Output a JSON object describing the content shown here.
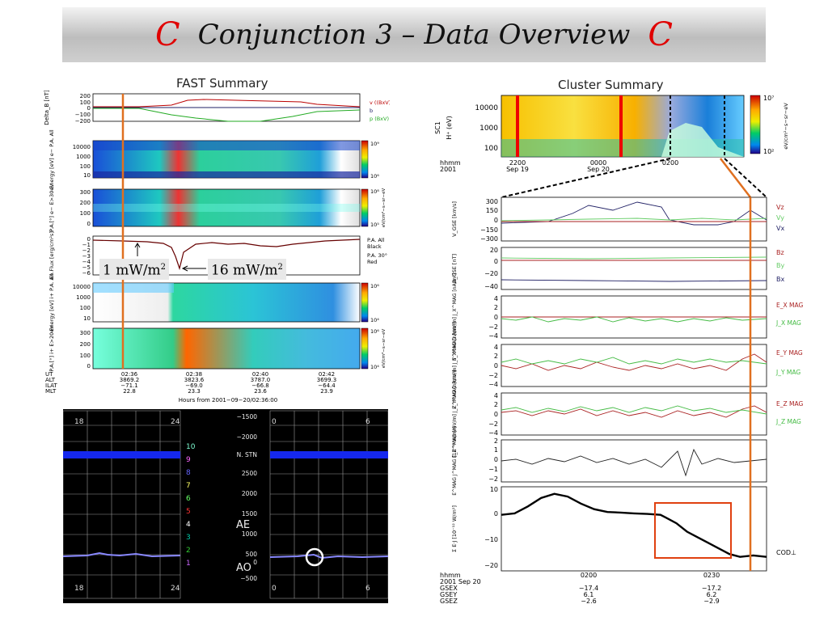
{
  "title": {
    "logo_left": "C",
    "text": "Conjunction 3 – Data Overview",
    "logo_right": "C"
  },
  "fast": {
    "title": "FAST Summary",
    "panels": [
      {
        "ylabel": "Delta_B [nT]",
        "ticks": [
          "200",
          "100",
          "0",
          "−100",
          "−200"
        ],
        "legend": [
          "v ((BxV)xB)",
          "b",
          "p (BxV)"
        ]
      },
      {
        "ylabel": "Energy [eV]  e− P.A. All",
        "ticks": [
          "10000",
          "1000",
          "100",
          "10"
        ],
        "cbar": [
          "10⁹",
          "10⁶"
        ]
      },
      {
        "ylabel": "P.A.[°]  e− E>30eV",
        "ticks": [
          "300",
          "200",
          "100",
          "0"
        ],
        "cbar": [
          "10⁸",
          "10⁵"
        ],
        "cbar_unit": "eV/cm²−s−sr−eV"
      },
      {
        "ylabel": "En.Flux [erg/cm²s]",
        "ticks": [
          "0",
          "−1",
          "−2",
          "−3",
          "−4",
          "−5",
          "−6"
        ],
        "legend": [
          "P.A. All",
          "Black",
          "P.A. 30°",
          "Red"
        ]
      },
      {
        "ylabel": "Energy [eV]  i+ P.A. All",
        "ticks": [
          "10000",
          "1000",
          "100",
          "10"
        ],
        "cbar": [
          "10⁶",
          "10⁴"
        ]
      },
      {
        "ylabel": "P.A.[°]  i+ E>20eV",
        "ticks": [
          "300",
          "200",
          "100",
          "0"
        ],
        "cbar": [
          "10⁶",
          "10⁴"
        ],
        "cbar_unit": "eV/cm²−s−sr−eV"
      }
    ],
    "callouts": {
      "left": "1 mW/m",
      "right": "16 mW/m",
      "power": "2"
    },
    "footer": {
      "row_labels": [
        "UT",
        "ALT",
        "ILAT",
        "MLT"
      ],
      "columns": [
        [
          "02:36",
          "3869.2",
          "−71.1",
          "22.8"
        ],
        [
          "02:38",
          "3823.6",
          "−69.0",
          "23.3"
        ],
        [
          "02:40",
          "3787.0",
          "−66.8",
          "23.6"
        ],
        [
          "02:42",
          "3699.3",
          "−64.4",
          "23.9"
        ]
      ],
      "axis_title": "Hours from 2001−09−20/02:36:00"
    }
  },
  "ae": {
    "ticks_right": [
      "−1500",
      "−2000",
      "N. STN",
      "2500",
      "2000",
      "1500",
      "1000",
      "500",
      "0",
      "−500"
    ],
    "station_numbers": [
      "10",
      "9",
      "8",
      "7",
      "6",
      "5",
      "4",
      "3",
      "2",
      "1"
    ],
    "station_colors": [
      "#7fffd4",
      "#ff66ff",
      "#6666ff",
      "#ffff66",
      "#66ff66",
      "#ff3333",
      "#ffffff",
      "#00ccaa",
      "#33cc33",
      "#cc66ff"
    ],
    "label_ae": "AE",
    "label_ao": "AO",
    "corner_labels": {
      "tl_left": "18",
      "tl_right": "24",
      "tr_left": "0",
      "tr_right": "6",
      "bl_left": "18",
      "bl_right": "24",
      "br_left": "0",
      "br_right": "6"
    }
  },
  "cluster": {
    "title": "Cluster Summary",
    "spectrogram": {
      "sc_label": "SC1",
      "ylabel": "H⁺ (eV)",
      "ticks": [
        "10000",
        "1000",
        "100"
      ],
      "cbar": [
        "10⁷",
        "10²"
      ],
      "cbar_unit": "eV/cm²−s−sr−eV"
    },
    "top_axis": {
      "hhmm": "hhmm",
      "year": "2001",
      "t1": "2200",
      "d1": "Sep 19",
      "t2": "0000",
      "d2": "Sep 20",
      "t3": "0200"
    },
    "panels": [
      {
        "ylabel": "V_GSE [km/s]",
        "ticks": [
          "300",
          "150",
          "0",
          "−150",
          "−300"
        ],
        "legend": [
          "Vz",
          "Vy",
          "Vx"
        ]
      },
      {
        "ylabel": "B_GSE [nT]",
        "ticks": [
          "20",
          "0",
          "−20",
          "−40"
        ],
        "legend": [
          "Bz",
          "By",
          "Bx"
        ]
      },
      {
        "ylabel": "E_X^MAG [mV/m]  J_X^MAG [nA/m²]",
        "ticks": [
          "4",
          "2",
          "0",
          "−2",
          "−4"
        ],
        "legend": [
          "E_X MAG",
          "J_X MAG"
        ]
      },
      {
        "ylabel": "E_Y^MAG [mV/m]  J_Y^MAG [nA/m²]",
        "ticks": [
          "4",
          "2",
          "0",
          "−2",
          "−4"
        ],
        "legend": [
          "E_Y MAG",
          "J_Y MAG"
        ]
      },
      {
        "ylabel": "E_Z^MAG [mV/m]  J_Z^MAG [nA/m²]",
        "ticks": [
          "4",
          "2",
          "0",
          "−2",
          "−4"
        ],
        "legend": [
          "E_Z MAG",
          "J_Z MAG"
        ]
      },
      {
        "ylabel": "E^MAG J^MAG [10⁻¹² W/m³]",
        "ticks": [
          "2",
          "1",
          "0",
          "−1",
          "−2"
        ]
      },
      {
        "ylabel": "Σ E·J [10⁻¹² W/m²]",
        "ticks": [
          "10",
          "0",
          "−10",
          "−20"
        ],
        "legend": [
          "COD⊥"
        ]
      }
    ],
    "bottom_axis": {
      "rows": [
        "hhmm",
        "2001 Sep 20",
        "GSEX",
        "GSEY",
        "GSEZ"
      ],
      "t1": "0200",
      "t2": "0230",
      "c1": [
        "−17.4",
        "6.1",
        "−2.6"
      ],
      "c2": [
        "−17.2",
        "6.2",
        "−2.9"
      ]
    }
  },
  "chart_data": [
    {
      "type": "line",
      "title": "FAST Summary",
      "xlabel": "Hours from 2001−09−20/02:36:00",
      "x_ticks": [
        "02:36",
        "02:38",
        "02:40",
        "02:42"
      ],
      "panel": "En.Flux [erg/cm²s]",
      "ylim": [
        -6,
        0
      ],
      "annotations": [
        "1 mW/m²",
        "16 mW/m²"
      ],
      "series": [
        {
          "name": "P.A. All",
          "x": [
            0,
            0.2,
            0.4,
            0.6,
            0.7,
            0.8,
            0.9,
            1.0,
            1.2,
            1.5,
            1.8,
            2.2,
            2.6,
            3.0,
            3.4,
            3.8,
            4.2,
            4.6,
            5.0,
            5.3,
            5.6,
            5.9
          ],
          "values": [
            -0.2,
            -0.3,
            -0.4,
            -0.5,
            -0.6,
            -1.2,
            -2.2,
            -4.5,
            -1.5,
            -1.0,
            -0.7,
            -0.9,
            -0.8,
            -1.2,
            -1.4,
            -1.0,
            -0.8,
            -0.4,
            -0.3,
            -0.2,
            -0.2,
            -0.1
          ]
        }
      ]
    },
    {
      "type": "line",
      "title": "Cluster Summary",
      "panel": "Σ E·J [10⁻¹² W/m²]",
      "x_ticks": [
        "0200",
        "0230"
      ],
      "ylim": [
        -20,
        10
      ],
      "series": [
        {
          "name": "COD⊥",
          "x": [
            0,
            5,
            10,
            15,
            20,
            25,
            30,
            35,
            40,
            45,
            50,
            55,
            60,
            62,
            66,
            70,
            74,
            78,
            82,
            86,
            90,
            95,
            100
          ],
          "values": [
            0,
            0.5,
            3,
            6,
            7.5,
            6.5,
            4,
            2,
            1,
            0.8,
            0.5,
            0.3,
            0,
            -1,
            -3,
            -6,
            -8,
            -10,
            -12,
            -14,
            -15,
            -14.5,
            -15
          ]
        }
      ]
    }
  ]
}
